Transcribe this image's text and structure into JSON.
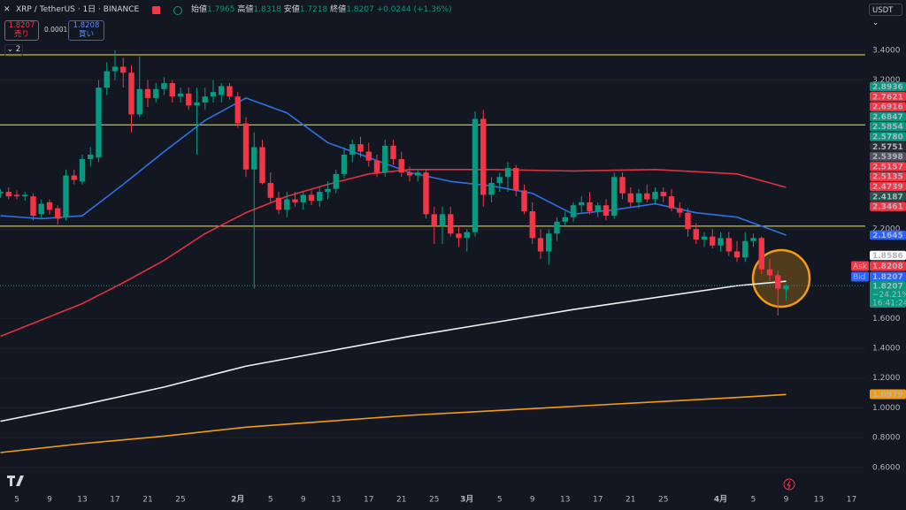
{
  "header": {
    "symbol": "XRP / TetherUS · 1日 · BINANCE",
    "open_label": "始値",
    "open": "1.7965",
    "high_label": "高値",
    "high": "1.8318",
    "low_label": "安値",
    "low": "1.7218",
    "close_label": "終値",
    "close": "1.8207",
    "change": "+0.0244 (+1.36%)"
  },
  "trade": {
    "sell_price": "1.8207",
    "sell": "売り",
    "spread": "0.0001",
    "buy_price": "1.8208",
    "buy": "買い",
    "indicators": "2",
    "currency": "USDT"
  },
  "price_labels": [
    {
      "label": "2.8936",
      "color": "#089981"
    },
    {
      "label": "2.7621",
      "color": "#f23645"
    },
    {
      "label": "2.6916",
      "color": "#f23645"
    },
    {
      "label": "2.6847",
      "color": "#089981"
    },
    {
      "label": "2.5854",
      "color": "#089981"
    },
    {
      "label": "2.5780",
      "color": "#089981"
    },
    {
      "label": "2.5751",
      "color": "#2a2e39"
    },
    {
      "label": "2.5398",
      "color": "#50535e"
    },
    {
      "label": "2.5157",
      "color": "#f23645"
    },
    {
      "label": "2.5135",
      "color": "#f23645"
    },
    {
      "label": "2.4739",
      "color": "#f23645"
    },
    {
      "label": "2.4187",
      "color": "#22574f"
    },
    {
      "label": "2.3461",
      "color": "#f23645"
    },
    {
      "label": "2.1645",
      "color": "#2962ff"
    },
    {
      "label": "1.8586",
      "color": "#ffffff"
    }
  ],
  "ask": {
    "tag": "Ask",
    "price": "1.8208"
  },
  "bid": {
    "tag": "Bid",
    "price": "1.8207"
  },
  "last": {
    "price": "1.8207",
    "change": "−24.21%",
    "countdown": "16:41:24"
  },
  "orange_ma": {
    "label": "1.0979"
  },
  "chart_data": {
    "type": "candlestick",
    "up_color": "#089981",
    "down_color": "#f23645",
    "grid": true,
    "ylim": [
      0.433,
      3.738
    ],
    "yticks": [
      {
        "value": 3.4,
        "label": "3.4000"
      },
      {
        "value": 3.2,
        "label": "3.2000"
      },
      {
        "value": 2.2,
        "label": "2.2000"
      },
      {
        "value": 1.6,
        "label": "1.6000"
      },
      {
        "value": 1.4,
        "label": "1.4000"
      },
      {
        "value": 1.2,
        "label": "1.2000"
      },
      {
        "value": 1.0,
        "label": "1.0000"
      },
      {
        "value": 0.8,
        "label": "0.8000"
      },
      {
        "value": 0.6,
        "label": "0.6000"
      }
    ],
    "categories": [
      null,
      null,
      "5",
      null,
      null,
      null,
      "9",
      null,
      null,
      null,
      "13",
      null,
      null,
      null,
      "17",
      null,
      null,
      null,
      "21",
      null,
      null,
      null,
      "25",
      null,
      null,
      null,
      null,
      null,
      null,
      "2月",
      null,
      null,
      null,
      "5",
      null,
      null,
      null,
      "9",
      null,
      null,
      null,
      "13",
      null,
      null,
      null,
      "17",
      null,
      null,
      null,
      "21",
      null,
      null,
      null,
      "25",
      null,
      null,
      null,
      "3月",
      null,
      null,
      null,
      "5",
      null,
      null,
      null,
      "9",
      null,
      null,
      null,
      "13",
      null,
      null,
      null,
      "17",
      null,
      null,
      null,
      "21",
      null,
      null,
      null,
      "25",
      null,
      null,
      null,
      null,
      null,
      null,
      "4月",
      null,
      null,
      null,
      "5",
      null,
      null,
      null,
      "9",
      null,
      null,
      null,
      "13",
      null,
      null,
      null,
      "17"
    ],
    "open": [
      2.44,
      2.45,
      2.43,
      2.42,
      2.42,
      2.3,
      2.38,
      2.34,
      2.28,
      2.56,
      2.52,
      2.67,
      2.68,
      3.15,
      3.26,
      3.29,
      3.25,
      2.97,
      3.14,
      3.08,
      3.14,
      3.18,
      3.09,
      3.11,
      3.03,
      3.05,
      3.09,
      3.1,
      3.16,
      3.09,
      2.91,
      2.6,
      2.75,
      2.51,
      2.41,
      2.33,
      2.4,
      2.38,
      2.43,
      2.39,
      2.45,
      2.47,
      2.57,
      2.7,
      2.77,
      2.72,
      2.66,
      2.58,
      2.76,
      2.67,
      2.58,
      2.56,
      2.58,
      2.3,
      2.22,
      2.3,
      2.17,
      2.14,
      2.18,
      2.94,
      2.43,
      2.51,
      2.55,
      2.61,
      2.46,
      2.32,
      2.14,
      2.05,
      2.17,
      2.25,
      2.28,
      2.36,
      2.38,
      2.32,
      2.36,
      2.29,
      2.55,
      2.44,
      2.38,
      2.44,
      2.4,
      2.45,
      2.42,
      2.34,
      2.31,
      2.2,
      2.13,
      2.15,
      2.09,
      2.14,
      2.05,
      2.01,
      2.12,
      2.14,
      1.93,
      1.89,
      1.7965,
      null,
      null,
      null,
      null,
      null,
      null,
      null,
      null
    ],
    "high": [
      2.47,
      2.48,
      2.46,
      2.45,
      2.44,
      2.4,
      2.4,
      2.36,
      2.6,
      2.6,
      2.7,
      2.75,
      3.2,
      3.32,
      3.4,
      3.35,
      3.3,
      3.36,
      3.2,
      3.18,
      3.22,
      3.2,
      3.15,
      3.15,
      3.15,
      3.15,
      3.2,
      3.18,
      3.18,
      3.12,
      2.95,
      2.85,
      2.8,
      2.58,
      2.45,
      2.45,
      2.45,
      2.45,
      2.46,
      2.48,
      2.52,
      2.6,
      2.75,
      2.8,
      2.82,
      2.78,
      2.7,
      2.8,
      2.8,
      2.72,
      2.62,
      2.6,
      2.6,
      2.35,
      2.35,
      2.35,
      2.22,
      2.2,
      2.99,
      3.0,
      2.55,
      2.58,
      2.65,
      2.63,
      2.5,
      2.38,
      2.2,
      2.2,
      2.28,
      2.32,
      2.38,
      2.42,
      2.45,
      2.38,
      2.4,
      2.58,
      2.58,
      2.48,
      2.47,
      2.5,
      2.48,
      2.48,
      2.47,
      2.38,
      2.34,
      2.24,
      2.18,
      2.2,
      2.18,
      2.18,
      2.12,
      2.18,
      2.17,
      2.15,
      2.0,
      1.92,
      1.8318,
      null,
      null,
      null,
      null,
      null,
      null,
      null,
      null
    ],
    "low": [
      2.41,
      2.4,
      2.4,
      2.39,
      2.26,
      2.27,
      2.3,
      2.23,
      2.26,
      2.5,
      2.5,
      2.62,
      2.65,
      3.1,
      3.2,
      3.15,
      2.85,
      2.95,
      3.02,
      3.05,
      3.1,
      3.05,
      3.05,
      3.0,
      2.7,
      3.0,
      3.05,
      3.05,
      3.07,
      2.88,
      2.55,
      1.8,
      2.5,
      2.38,
      2.3,
      2.28,
      2.35,
      2.33,
      2.36,
      2.35,
      2.4,
      2.44,
      2.54,
      2.65,
      2.68,
      2.62,
      2.55,
      2.55,
      2.63,
      2.55,
      2.52,
      2.52,
      2.27,
      2.1,
      2.1,
      2.15,
      2.08,
      2.05,
      2.15,
      2.35,
      2.38,
      2.45,
      2.45,
      2.42,
      2.3,
      2.1,
      2.0,
      1.96,
      2.12,
      2.22,
      2.25,
      2.3,
      2.3,
      2.28,
      2.26,
      2.27,
      2.4,
      2.35,
      2.34,
      2.38,
      2.37,
      2.38,
      2.32,
      2.28,
      2.15,
      2.1,
      2.08,
      2.07,
      2.05,
      2.02,
      1.98,
      1.98,
      2.08,
      1.9,
      1.85,
      1.62,
      1.7218,
      null,
      null,
      null,
      null,
      null,
      null,
      null,
      null
    ],
    "close": [
      2.45,
      2.42,
      2.42,
      2.43,
      2.29,
      2.37,
      2.33,
      2.27,
      2.56,
      2.53,
      2.67,
      2.7,
      3.15,
      3.26,
      3.29,
      3.25,
      2.97,
      3.14,
      3.08,
      3.14,
      3.18,
      3.09,
      3.11,
      3.03,
      3.05,
      3.09,
      3.12,
      3.16,
      3.09,
      2.91,
      2.6,
      2.75,
      2.51,
      2.41,
      2.33,
      2.4,
      2.38,
      2.43,
      2.39,
      2.45,
      2.47,
      2.57,
      2.7,
      2.77,
      2.72,
      2.66,
      2.58,
      2.76,
      2.67,
      2.58,
      2.56,
      2.58,
      2.3,
      2.22,
      2.3,
      2.17,
      2.14,
      2.18,
      2.94,
      2.43,
      2.51,
      2.55,
      2.61,
      2.46,
      2.32,
      2.14,
      2.05,
      2.17,
      2.25,
      2.28,
      2.36,
      2.38,
      2.32,
      2.36,
      2.29,
      2.55,
      2.44,
      2.38,
      2.44,
      2.4,
      2.45,
      2.42,
      2.34,
      2.31,
      2.2,
      2.13,
      2.15,
      2.09,
      2.14,
      2.05,
      2.01,
      2.12,
      2.14,
      1.93,
      1.89,
      1.8,
      1.8207,
      null,
      null,
      null,
      null,
      null,
      null,
      null,
      null
    ],
    "levels": {
      "color": "#f7e733",
      "values": [
        3.37,
        2.9,
        2.22
      ]
    },
    "series": [
      {
        "color": "#2f6fe4",
        "x": [
          0,
          5,
          10,
          15,
          20,
          25,
          30,
          35,
          40,
          45,
          50,
          55,
          60,
          65,
          70,
          75,
          80,
          85,
          90,
          96
        ],
        "values": [
          2.29,
          2.27,
          2.29,
          2.5,
          2.72,
          2.93,
          3.08,
          2.98,
          2.78,
          2.68,
          2.58,
          2.52,
          2.49,
          2.44,
          2.3,
          2.33,
          2.37,
          2.31,
          2.28,
          2.16
        ]
      },
      {
        "color": "#e0313f",
        "x": [
          0,
          5,
          10,
          15,
          20,
          25,
          30,
          35,
          40,
          45,
          50,
          60,
          70,
          80,
          90,
          96
        ],
        "values": [
          1.48,
          1.59,
          1.7,
          1.84,
          1.99,
          2.17,
          2.31,
          2.42,
          2.5,
          2.57,
          2.6,
          2.6,
          2.59,
          2.6,
          2.57,
          2.48
        ]
      },
      {
        "color": "#f0f0f0",
        "x": [
          0,
          10,
          20,
          30,
          40,
          50,
          60,
          70,
          80,
          90,
          96
        ],
        "values": [
          0.91,
          1.02,
          1.14,
          1.28,
          1.38,
          1.48,
          1.57,
          1.66,
          1.74,
          1.82,
          1.85
        ]
      },
      {
        "color": "#f39c12",
        "x": [
          0,
          10,
          20,
          30,
          40,
          50,
          60,
          70,
          80,
          90,
          96
        ],
        "values": [
          0.7,
          0.76,
          0.81,
          0.87,
          0.91,
          0.95,
          0.98,
          1.01,
          1.04,
          1.07,
          1.09
        ]
      }
    ]
  }
}
